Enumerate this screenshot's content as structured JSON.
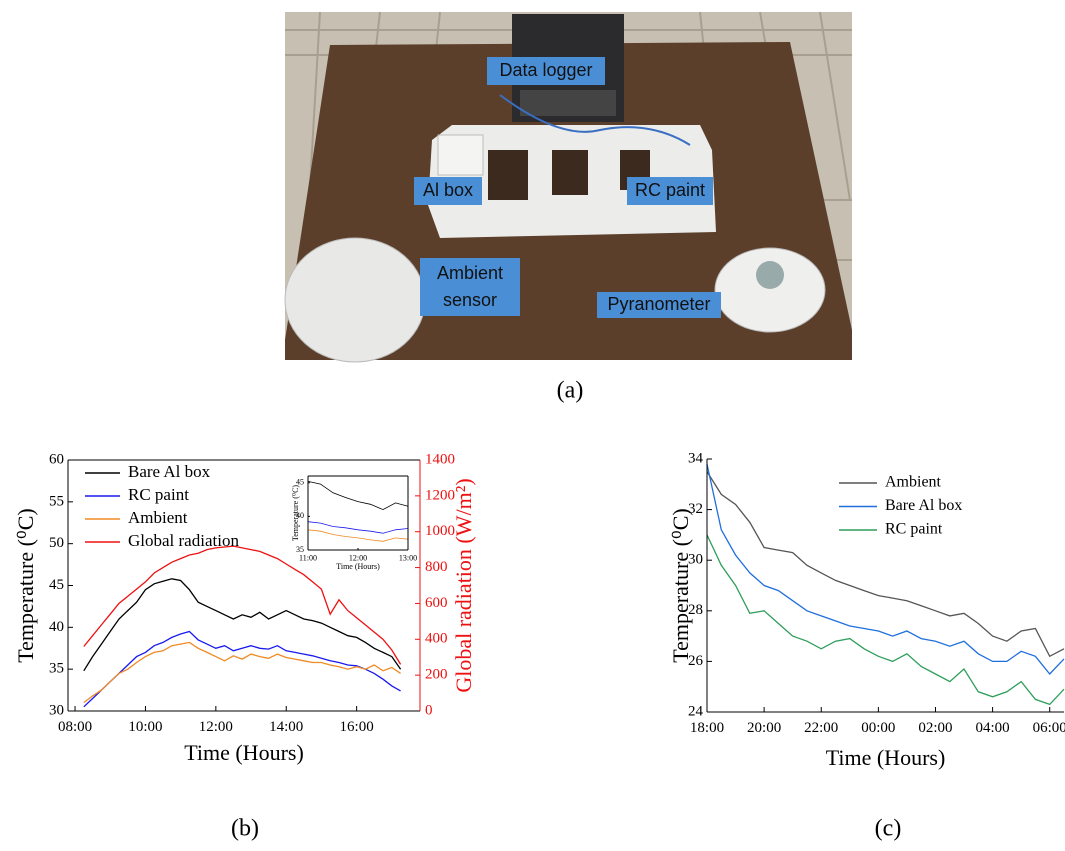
{
  "photo": {
    "labels": {
      "data_logger": "Data logger",
      "al_box": "Al box",
      "rc_paint": "RC paint",
      "ambient_sensor": [
        "Ambient",
        "sensor"
      ],
      "pyranometer": "Pyranometer"
    }
  },
  "captions": [
    "(a)",
    "(b)",
    "(c)"
  ],
  "chart_data": [
    {
      "type": "line",
      "xlabel": "Time (Hours)",
      "ylabel": "Temperature (⁰C)",
      "y2label": "Global radiation (W/m²)",
      "x": [
        8.25,
        8.5,
        8.75,
        9,
        9.25,
        9.5,
        9.75,
        10,
        10.25,
        10.5,
        10.75,
        11,
        11.25,
        11.5,
        11.75,
        12,
        12.25,
        12.5,
        12.75,
        13,
        13.25,
        13.5,
        13.75,
        14,
        14.25,
        14.5,
        14.75,
        15,
        15.25,
        15.5,
        15.75,
        16,
        16.25,
        16.5,
        16.75,
        17,
        17.25
      ],
      "xlim": [
        7.8,
        17.8
      ],
      "xticks": [
        {
          "value": 8,
          "label": "08:00"
        },
        {
          "value": 10,
          "label": "10:00"
        },
        {
          "value": 12,
          "label": "12:00"
        },
        {
          "value": 14,
          "label": "14:00"
        },
        {
          "value": 16,
          "label": "16:00"
        }
      ],
      "ylim": [
        30,
        60
      ],
      "yticks": [
        30,
        35,
        40,
        45,
        50,
        55,
        60
      ],
      "y2lim": [
        0,
        1400
      ],
      "y2ticks": [
        0,
        200,
        400,
        600,
        800,
        1000,
        1200,
        1400
      ],
      "y2color": "#ee1111",
      "legend": "upper left",
      "series": [
        {
          "name": "Bare Al box",
          "color": "#000000",
          "values": [
            34.8,
            36.5,
            38,
            39.5,
            41,
            42,
            43,
            44.5,
            45.2,
            45.5,
            45.8,
            45.6,
            44.5,
            43,
            42.5,
            42,
            41.5,
            41,
            41.5,
            41.2,
            41.8,
            41,
            41.5,
            42,
            41.5,
            41,
            40.8,
            40.5,
            40,
            39.5,
            39,
            38.8,
            38.2,
            37.5,
            37,
            36.5,
            35
          ]
        },
        {
          "name": "RC paint",
          "color": "#1a1aee",
          "values": [
            30.5,
            31.5,
            32.5,
            33.5,
            34.5,
            35.5,
            36.5,
            37,
            37.8,
            38.2,
            38.8,
            39.2,
            39.5,
            38.5,
            38,
            37.5,
            37.8,
            37.2,
            37.5,
            37.8,
            37.5,
            37.4,
            37.8,
            37.2,
            37,
            36.8,
            36.6,
            36.3,
            36,
            35.8,
            35.5,
            35.4,
            35,
            34.5,
            33.8,
            33,
            32.4
          ]
        },
        {
          "name": "Ambient",
          "color": "#f08a24",
          "values": [
            31,
            31.8,
            32.5,
            33.5,
            34.5,
            35,
            35.8,
            36.5,
            37,
            37.2,
            37.8,
            38,
            38.2,
            37.5,
            37,
            36.5,
            36,
            36.6,
            36.2,
            36.8,
            36.5,
            36.3,
            36.8,
            36.4,
            36.2,
            36,
            35.8,
            35.8,
            35.5,
            35.3,
            35,
            35.3,
            35,
            35.5,
            34.8,
            35.2,
            34.5
          ]
        },
        {
          "name": "Global radiation",
          "color": "#ee1111",
          "axis": "y2",
          "values": [
            360,
            420,
            480,
            540,
            600,
            640,
            680,
            720,
            770,
            800,
            830,
            850,
            870,
            880,
            900,
            910,
            915,
            920,
            910,
            900,
            890,
            870,
            850,
            820,
            790,
            760,
            720,
            680,
            540,
            620,
            560,
            520,
            480,
            440,
            400,
            340,
            260
          ]
        }
      ]
    },
    {
      "type": "line",
      "xlabel": "Time (Hours)",
      "ylabel": "Temperature (⁰C)",
      "x": [
        11,
        11.25,
        11.5,
        11.75,
        12,
        12.25,
        12.5,
        12.75,
        13
      ],
      "xlim": [
        11,
        13
      ],
      "xticks": [
        {
          "value": 11,
          "label": "11:00"
        },
        {
          "value": 12,
          "label": "12:00"
        },
        {
          "value": 13,
          "label": "13:00"
        }
      ],
      "ylim": [
        35,
        46
      ],
      "yticks": [
        35,
        40,
        45
      ],
      "series": [
        {
          "color": "#000000",
          "values": [
            45.2,
            44.8,
            43.5,
            42.8,
            42.2,
            41.8,
            41,
            42,
            41.5
          ]
        },
        {
          "color": "#1a1aee",
          "values": [
            39.2,
            39,
            38.5,
            38.3,
            38,
            37.8,
            37.5,
            38,
            38.2
          ]
        },
        {
          "color": "#f08a24",
          "values": [
            38,
            37.8,
            37.3,
            37,
            36.8,
            36.5,
            36.3,
            36.8,
            36.6
          ]
        }
      ]
    },
    {
      "type": "line",
      "xlabel": "Time (Hours)",
      "ylabel": "Temperature (⁰C)",
      "x": [
        18,
        18.5,
        19,
        19.5,
        20,
        20.5,
        21,
        21.5,
        22,
        22.5,
        23,
        23.5,
        24,
        24.5,
        25,
        25.5,
        26,
        26.5,
        27,
        27.5,
        28,
        28.5,
        29,
        29.5,
        30,
        30.5
      ],
      "xlim": [
        18,
        30.5
      ],
      "xticks": [
        {
          "value": 18,
          "label": "18:00"
        },
        {
          "value": 20,
          "label": "20:00"
        },
        {
          "value": 22,
          "label": "22:00"
        },
        {
          "value": 24,
          "label": "00:00"
        },
        {
          "value": 26,
          "label": "02:00"
        },
        {
          "value": 28,
          "label": "04:00"
        },
        {
          "value": 30,
          "label": "06:00"
        }
      ],
      "ylim": [
        24,
        34
      ],
      "yticks": [
        24,
        26,
        28,
        30,
        32,
        34
      ],
      "legend": "upper right",
      "series": [
        {
          "name": "Ambient",
          "color": "#555555",
          "values": [
            33.5,
            32.6,
            32.2,
            31.5,
            30.5,
            30.4,
            30.3,
            29.8,
            29.5,
            29.2,
            29.0,
            28.8,
            28.6,
            28.5,
            28.4,
            28.2,
            28.0,
            27.8,
            27.9,
            27.5,
            27.0,
            26.8,
            27.2,
            27.3,
            26.2,
            26.5
          ]
        },
        {
          "name": "Bare Al box",
          "color": "#1f6fdd",
          "values": [
            33.8,
            31.2,
            30.2,
            29.5,
            29.0,
            28.8,
            28.4,
            28.0,
            27.8,
            27.6,
            27.4,
            27.3,
            27.2,
            27.0,
            27.2,
            26.9,
            26.8,
            26.6,
            26.8,
            26.3,
            26.0,
            26.0,
            26.4,
            26.2,
            25.5,
            26.1
          ]
        },
        {
          "name": "RC paint",
          "color": "#2e9e5b",
          "values": [
            31.0,
            29.8,
            29.0,
            27.9,
            28.0,
            27.5,
            27.0,
            26.8,
            26.5,
            26.8,
            26.9,
            26.5,
            26.2,
            26.0,
            26.3,
            25.8,
            25.5,
            25.2,
            25.7,
            24.8,
            24.6,
            24.8,
            25.2,
            24.5,
            24.3,
            24.9
          ]
        }
      ]
    }
  ]
}
